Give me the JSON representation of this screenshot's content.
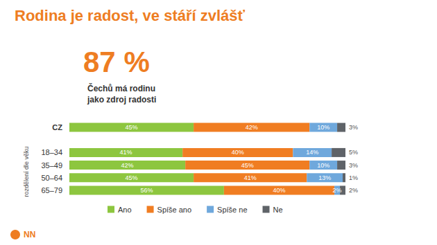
{
  "chart_data": {
    "type": "bar",
    "title": "Rodina je radost, ve stáří zvlášť",
    "headline": "87 %",
    "subtitle": "Čechů má rodinu jako zdroj radosti",
    "ylabel": "rozdělení dle věku",
    "logo": "NN",
    "orientation": "horizontal",
    "stacked": true,
    "data_labels": true,
    "tick_labels": "y",
    "grid": false,
    "legend": "bottom",
    "xlim": [
      0,
      100
    ],
    "categories": [
      "CZ",
      null,
      "18–34",
      "35–49",
      "50–64",
      "65–79"
    ],
    "series": [
      {
        "name": "Ano",
        "color": "#8dc63f",
        "values": [
          45,
          null,
          41,
          42,
          45,
          56
        ],
        "value_labels": [
          "45%",
          null,
          "41%",
          "42%",
          "45%",
          "56%"
        ]
      },
      {
        "name": "Spíše ano",
        "color": "#f07d22",
        "values": [
          42,
          null,
          40,
          45,
          41,
          40
        ],
        "value_labels": [
          "42%",
          null,
          "40%",
          "45%",
          "41%",
          "40%"
        ]
      },
      {
        "name": "Spíše ne",
        "color": "#6fa8dc",
        "values": [
          10,
          null,
          14,
          10,
          13,
          2
        ],
        "value_labels": [
          "10%",
          null,
          "14%",
          "10%",
          "13%",
          "2%"
        ]
      },
      {
        "name": "Ne",
        "color": "#5f6368",
        "values": [
          3,
          null,
          5,
          3,
          1,
          2
        ],
        "value_labels": [
          "3%",
          null,
          "5%",
          "3%",
          "1%",
          "2%"
        ]
      }
    ]
  }
}
